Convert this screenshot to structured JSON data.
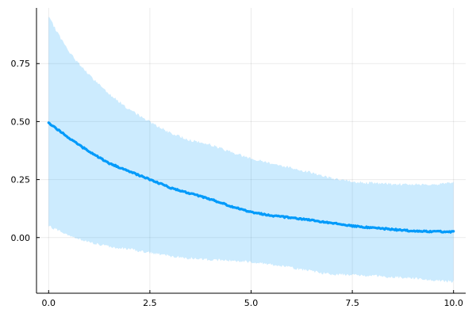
{
  "chart_data": {
    "type": "line",
    "title": "",
    "xlabel": "",
    "ylabel": "",
    "xlim": [
      -0.3,
      10.3
    ],
    "ylim": [
      -0.24,
      0.99
    ],
    "xticks": [
      0.0,
      2.5,
      5.0,
      7.5,
      10.0
    ],
    "xtick_labels": [
      "0.0",
      "2.5",
      "5.0",
      "7.5",
      "10.0"
    ],
    "yticks": [
      0.0,
      0.25,
      0.5,
      0.75
    ],
    "ytick_labels": [
      "0.00",
      "0.25",
      "0.50",
      "0.75"
    ],
    "grid": true,
    "legend": "none",
    "colors": {
      "line": "#009AFA",
      "band": "#009AFA"
    },
    "series": [
      {
        "x": [
          0.0,
          0.5,
          1.0,
          1.5,
          2.0,
          2.5,
          3.0,
          3.5,
          4.0,
          4.5,
          5.0,
          5.5,
          6.0,
          6.5,
          7.0,
          7.5,
          8.0,
          8.5,
          9.0,
          9.5,
          10.0
        ],
        "y": [
          0.495,
          0.43,
          0.37,
          0.32,
          0.285,
          0.25,
          0.215,
          0.19,
          0.165,
          0.135,
          0.11,
          0.095,
          0.085,
          0.075,
          0.062,
          0.05,
          0.042,
          0.035,
          0.028,
          0.026,
          0.025
        ],
        "lower": [
          0.05,
          0.01,
          -0.02,
          -0.04,
          -0.05,
          -0.065,
          -0.08,
          -0.09,
          -0.095,
          -0.1,
          -0.105,
          -0.115,
          -0.13,
          -0.145,
          -0.16,
          -0.16,
          -0.165,
          -0.17,
          -0.175,
          -0.185,
          -0.19
        ],
        "upper": [
          0.95,
          0.8,
          0.7,
          0.62,
          0.55,
          0.5,
          0.45,
          0.42,
          0.4,
          0.37,
          0.34,
          0.32,
          0.3,
          0.28,
          0.255,
          0.24,
          0.235,
          0.23,
          0.23,
          0.23,
          0.235
        ]
      }
    ]
  }
}
